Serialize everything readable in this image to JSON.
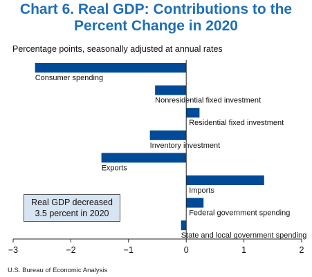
{
  "title_line1": "Chart 6. Real GDP: Contributions to the",
  "title_line2": "Percent Change in 2020",
  "subtitle": "Percentage points, seasonally adjusted at annual rates",
  "source": "U.S. Bureau of Economic Analysis",
  "callout_line1": "Real GDP decreased",
  "callout_line2": "3.5 percent in 2020",
  "colors": {
    "bar": "#004a97",
    "title": "#1f6fb5",
    "callout_bg": "#d7e4f1"
  },
  "chart_data": {
    "type": "bar",
    "orientation": "horizontal",
    "categories": [
      "Consumer spending",
      "Nonresidential fixed investment",
      "Residential fixed investment",
      "Inventory investment",
      "Exports",
      "Imports",
      "Federal government spending",
      "State and local government spending"
    ],
    "values": [
      -2.62,
      -0.54,
      0.23,
      -0.63,
      -1.47,
      1.35,
      0.3,
      -0.09
    ],
    "xlim": [
      -3,
      2
    ],
    "xticks": [
      -3,
      -2,
      -1,
      0,
      1,
      2
    ],
    "xtick_labels": [
      "−3",
      "−2",
      "−1",
      "0",
      "1",
      "2"
    ],
    "grid": false
  }
}
